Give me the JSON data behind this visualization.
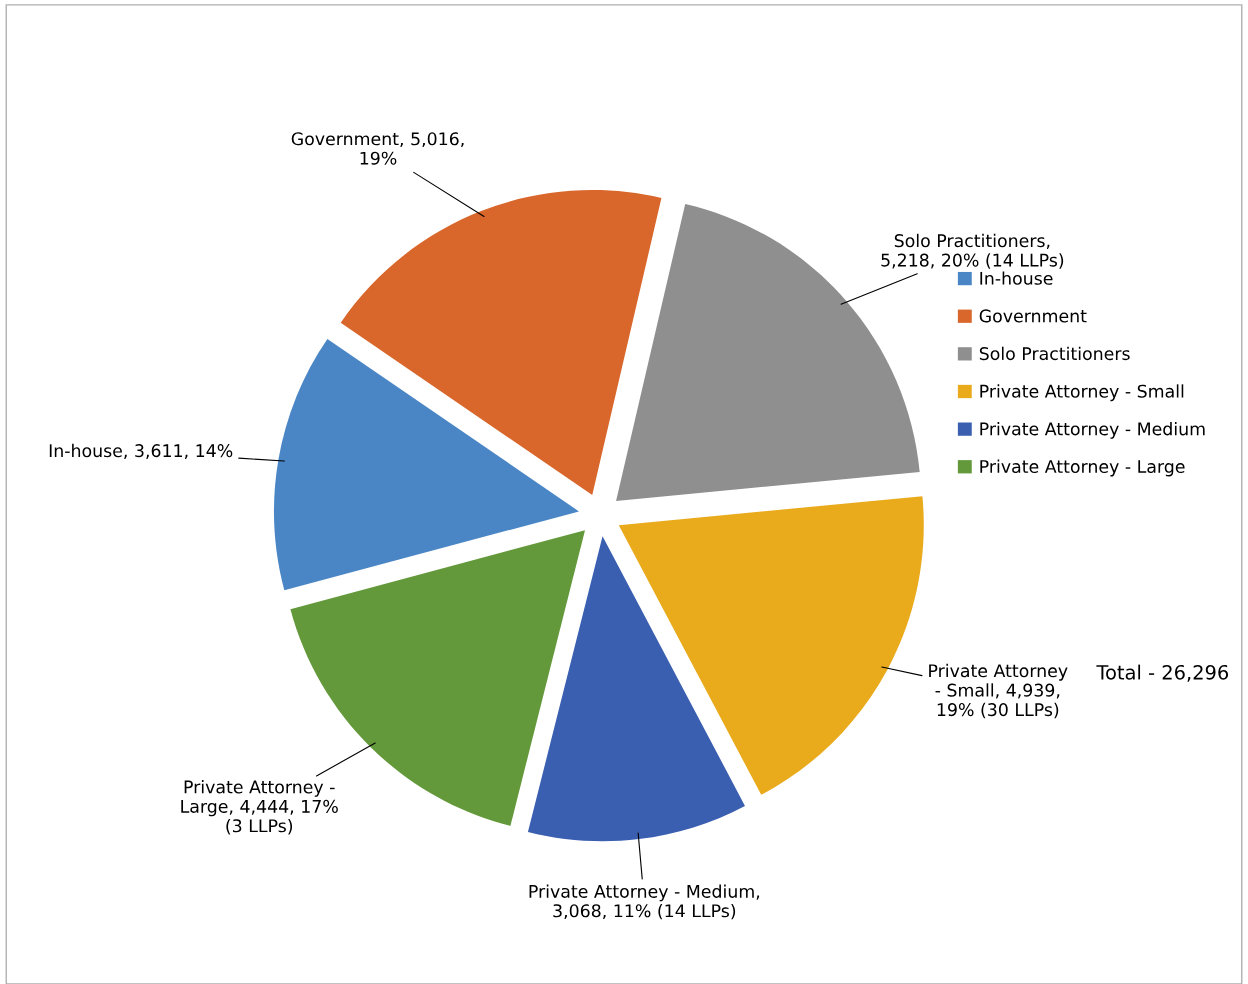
{
  "chart_data": {
    "type": "pie",
    "categories": [
      "In-house",
      "Government",
      "Solo Practitioners",
      "Private Attorney - Small",
      "Private Attorney - Medium",
      "Private Attorney - Large"
    ],
    "values": [
      3611,
      5016,
      5218,
      4939,
      3068,
      4444
    ],
    "colors": [
      "#4a86c5",
      "#d9662a",
      "#8f8f8f",
      "#e9ab1c",
      "#3a5fb0",
      "#63993a"
    ],
    "value_labels": [
      "In-house, 3,611, 14%",
      "Government, 5,016,\n19%",
      "Solo Practitioners,\n5,218, 20% (14 LLPs)",
      "Private Attorney\n- Small, 4,939,\n19% (30 LLPs)",
      "Private Attorney - Medium,\n3,068, 11% (14 LLPs)",
      "Private Attorney -\nLarge, 4,444, 17%\n(3 LLPs)"
    ],
    "legend": "right",
    "annotations": [
      "Total - 26,296"
    ]
  }
}
